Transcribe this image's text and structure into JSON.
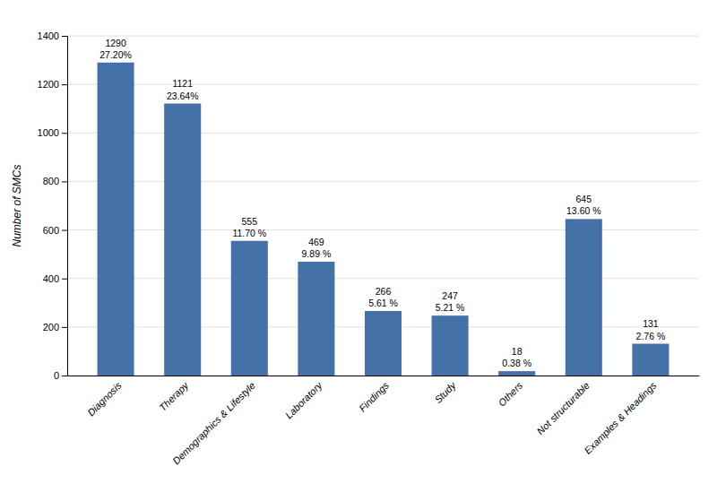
{
  "chart_data": {
    "type": "bar",
    "categories": [
      "Diagnosis",
      "Therapy",
      "Demographics & Lifestyle",
      "Laboratory",
      "Findings",
      "Study",
      "Others",
      "Not structurable",
      "Examples & Headings"
    ],
    "values": [
      1290,
      1121,
      555,
      469,
      266,
      247,
      18,
      645,
      131
    ],
    "percentages": [
      27.2,
      23.64,
      11.7,
      9.89,
      5.61,
      5.21,
      0.38,
      13.6,
      2.76
    ],
    "percentage_labels": [
      "27.20%",
      "23.64%",
      "11.70 %",
      "9.89 %",
      "5.61 %",
      "5.21 %",
      "0.38 %",
      "13.60 %",
      "2.76 %"
    ],
    "color": "#4472a8",
    "y_label": "Number of SMCs",
    "ylim": [
      0,
      1400
    ],
    "yticks": [
      0,
      200,
      400,
      600,
      800,
      1000,
      1200,
      1400
    ],
    "grid": true,
    "data_labels": true
  }
}
